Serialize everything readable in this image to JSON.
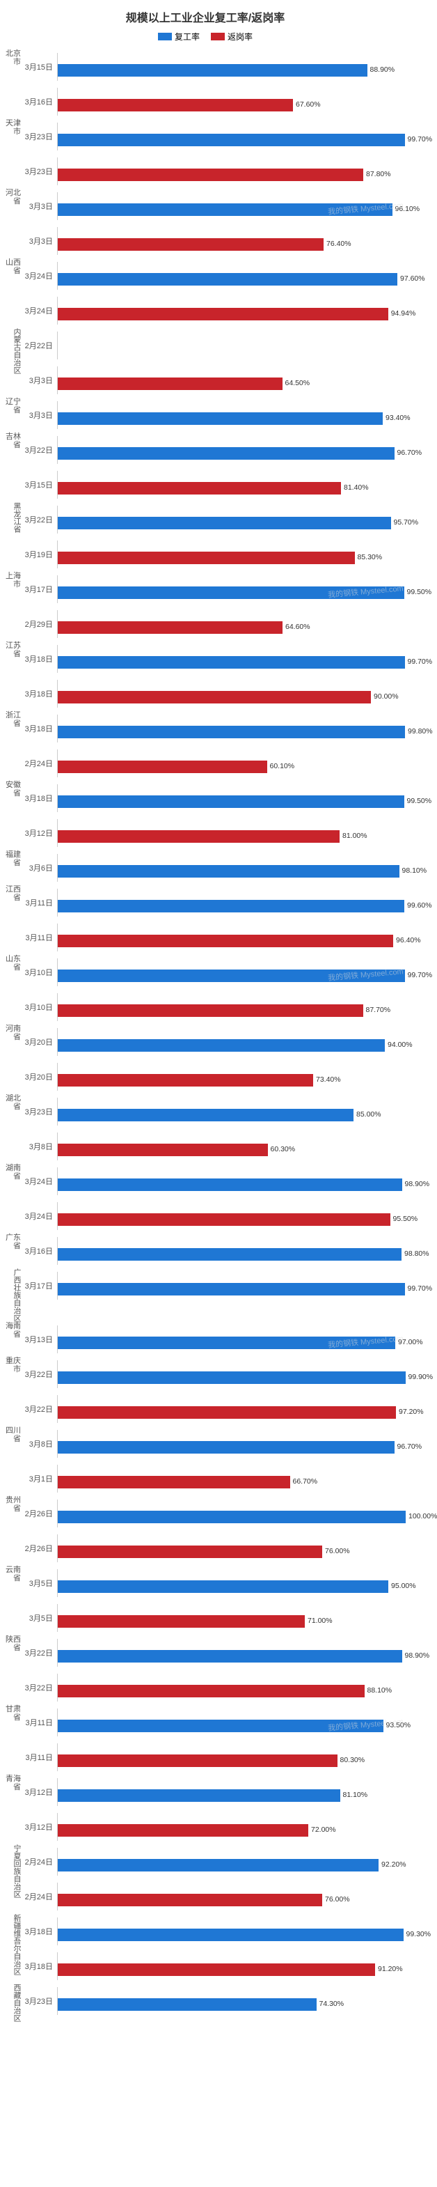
{
  "title": "规模以上工业企业复工率/返岗率",
  "legend": [
    {
      "label": "复工率",
      "color": "#1f77d4"
    },
    {
      "label": "返岗率",
      "color": "#c8242b"
    }
  ],
  "xmax": 100,
  "bar_bg": "#ffffff",
  "watermark_text": "我的钢铁 Mysteel.com",
  "watermark_color": "#dddddd",
  "data": [
    {
      "region": "北京市",
      "date1": "3月15日",
      "v1": 88.9,
      "date2": "3月16日",
      "v2": 67.6
    },
    {
      "region": "天津市",
      "date1": "3月23日",
      "v1": 99.7,
      "date2": "3月23日",
      "v2": 87.8
    },
    {
      "region": "河北省",
      "date1": "3月3日",
      "v1": 96.1,
      "date2": "3月3日",
      "v2": 76.4
    },
    {
      "region": "山西省",
      "date1": "3月24日",
      "v1": 97.6,
      "date2": "3月24日",
      "v2": 94.94
    },
    {
      "region": "内蒙古自治区",
      "date1": "2月22日",
      "v1": null,
      "date2": "3月3日",
      "v2": 64.5,
      "single_red_on_top": true
    },
    {
      "region": "辽宁省",
      "date1": "3月3日",
      "v1": 93.4,
      "single": true
    },
    {
      "region": "吉林省",
      "date1": "3月22日",
      "v1": 96.7,
      "date2": "3月15日",
      "v2": 81.4
    },
    {
      "region": "黑龙江省",
      "date1": "3月22日",
      "v1": 95.7,
      "date2": "3月19日",
      "v2": 85.3
    },
    {
      "region": "上海市",
      "date1": "3月17日",
      "v1": 99.5,
      "date2": "2月29日",
      "v2": 64.6
    },
    {
      "region": "江苏省",
      "date1": "3月18日",
      "v1": 99.7,
      "date2": "3月18日",
      "v2": 90.0
    },
    {
      "region": "浙江省",
      "date1": "3月18日",
      "v1": 99.8,
      "date2": "2月24日",
      "v2": 60.1
    },
    {
      "region": "安徽省",
      "date1": "3月18日",
      "v1": 99.5,
      "date2": "3月12日",
      "v2": 81.0
    },
    {
      "region": "福建省",
      "date1": "3月6日",
      "v1": 98.1,
      "single": true
    },
    {
      "region": "江西省",
      "date1": "3月11日",
      "v1": 99.6,
      "date2": "3月11日",
      "v2": 96.4
    },
    {
      "region": "山东省",
      "date1": "3月10日",
      "v1": 99.7,
      "date2": "3月10日",
      "v2": 87.7
    },
    {
      "region": "河南省",
      "date1": "3月20日",
      "v1": 94.0,
      "date2": "3月20日",
      "v2": 73.4
    },
    {
      "region": "湖北省",
      "date1": "3月23日",
      "v1": 85.0,
      "date2": "3月8日",
      "v2": 60.3
    },
    {
      "region": "湖南省",
      "date1": "3月24日",
      "v1": 98.9,
      "date2": "3月24日",
      "v2": 95.5
    },
    {
      "region": "广东省",
      "date1": "3月16日",
      "v1": 98.8,
      "single": true
    },
    {
      "region": "广西壮族自治区",
      "date1": "3月17日",
      "v1": 99.7,
      "single": true
    },
    {
      "region": "海南省",
      "date1": "3月13日",
      "v1": 97.0,
      "single": true
    },
    {
      "region": "重庆市",
      "date1": "3月22日",
      "v1": 99.9,
      "date2": "3月22日",
      "v2": 97.2
    },
    {
      "region": "四川省",
      "date1": "3月8日",
      "v1": 96.7,
      "date2": "3月1日",
      "v2": 66.7
    },
    {
      "region": "贵州省",
      "date1": "2月26日",
      "v1": 100.0,
      "date2": "2月26日",
      "v2": 76.0
    },
    {
      "region": "云南省",
      "date1": "3月5日",
      "v1": 95.0,
      "date2": "3月5日",
      "v2": 71.0
    },
    {
      "region": "陕西省",
      "date1": "3月22日",
      "v1": 98.9,
      "date2": "3月22日",
      "v2": 88.1
    },
    {
      "region": "甘肃省",
      "date1": "3月11日",
      "v1": 93.5,
      "date2": "3月11日",
      "v2": 80.3
    },
    {
      "region": "青海省",
      "date1": "3月12日",
      "v1": 81.1,
      "date2": "3月12日",
      "v2": 72.0
    },
    {
      "region": "宁夏回族自治区",
      "date1": "2月24日",
      "v1": 92.2,
      "date2": "2月24日",
      "v2": 76.0
    },
    {
      "region": "新疆维吾尔自治区",
      "date1": "3月18日",
      "v1": 99.3,
      "date2": "3月18日",
      "v2": 91.2
    },
    {
      "region": "西藏自治区",
      "date1": "3月23日",
      "v1": 74.3,
      "single": true
    }
  ]
}
